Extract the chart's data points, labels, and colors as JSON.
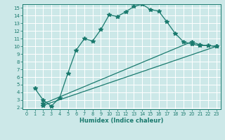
{
  "xlabel": "Humidex (Indice chaleur)",
  "bg_color": "#cce8e8",
  "grid_color": "#ffffff",
  "line_color": "#1a7a6e",
  "xlim": [
    -0.5,
    23.5
  ],
  "ylim": [
    1.8,
    15.5
  ],
  "xticks": [
    0,
    1,
    2,
    3,
    4,
    5,
    6,
    7,
    8,
    9,
    10,
    11,
    12,
    13,
    14,
    15,
    16,
    17,
    18,
    19,
    20,
    21,
    22,
    23
  ],
  "yticks": [
    2,
    3,
    4,
    5,
    6,
    7,
    8,
    9,
    10,
    11,
    12,
    13,
    14,
    15
  ],
  "curve1_x": [
    1,
    2,
    3,
    4,
    5,
    6,
    7,
    8,
    9,
    10,
    11,
    12,
    13,
    14,
    15,
    16,
    17,
    18,
    19,
    20,
    21,
    22,
    23
  ],
  "curve1_y": [
    4.5,
    3.0,
    2.2,
    3.3,
    6.5,
    9.5,
    11.0,
    10.7,
    12.2,
    14.1,
    13.9,
    14.5,
    15.2,
    15.5,
    14.8,
    14.6,
    13.2,
    11.7,
    10.6,
    10.3,
    10.1,
    10.1,
    10.0
  ],
  "curve2_x": [
    2,
    23
  ],
  "curve2_y": [
    2.3,
    10.0
  ],
  "curve3_x": [
    2,
    20,
    21,
    22,
    23
  ],
  "curve3_y": [
    2.5,
    10.6,
    10.2,
    10.1,
    10.0
  ]
}
